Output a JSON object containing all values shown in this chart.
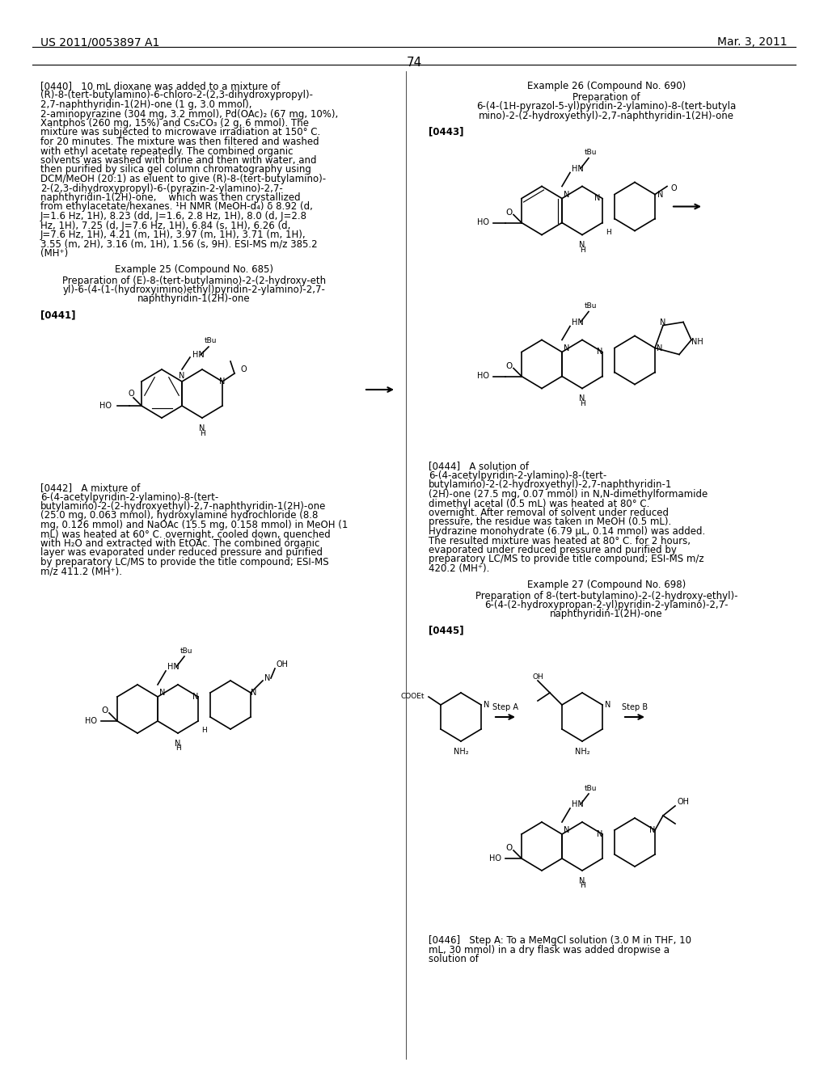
{
  "page_number": "74",
  "header_left": "US 2011/0053897 A1",
  "header_right": "Mar. 3, 2011",
  "background_color": "#ffffff",
  "text_color": "#000000",
  "font_size_body": 8.5,
  "font_size_header": 10,
  "font_size_page_num": 11,
  "left_column": {
    "para_0440": "[0440]   10 mL dioxane was added to a mixture of (R)-8-(tert-butylamino)-6-chloro-2-(2,3-dihydroxypropyl)-2,7-naphthyridin-1(2H)-one (1 g, 3.0 mmol), 2-aminopyrazine (304 mg, 3.2 mmol), Pd(OAc)₂ (67 mg, 10%), Xantphos (260 mg, 15%) and Cs₂CO₃ (2 g, 6 mmol). The mixture was subjected to microwave irradiation at 150° C. for 20 minutes. The mixture was then filtered and washed with ethyl acetate repeatedly. The combined organic solvents was washed with brine and then with water, and then purified by silica gel column chromatography using DCM/MeOH (20:1) as eluent to give (R)-8-(tert-butylamino)-2-(2,3-dihydroxypropyl)-6-(pyrazin-2-ylamino)-2,7-naphthyridin-1(2H)-one,    which was then crystallized from ethylacetate/hexanes. ¹H NMR (MeOH-d₄) δ 8.92 (d, J=1.6 Hz, 1H), 8.23 (dd, J=1.6, 2.8 Hz, 1H), 8.0 (d, J=2.8 Hz, 1H), 7.25 (d, J=7.6 Hz, 1H), 6.84 (s, 1H), 6.26 (d, J=7.6 Hz, 1H), 4.21 (m, 1H), 3.97 (m, 1H), 3.71 (m, 1H), 3.55 (m, 2H), 3.16 (m, 1H), 1.56 (s, 9H). ESI-MS m/z 385.2 (MH⁺)",
    "example25_title": "Example 25 (Compound No. 685)",
    "example25_prep": "Preparation of (E)-8-(tert-butylamino)-2-(2-hydroxy-ethyl)-6-(4-(1-(hydroxyimino)ethyl)pyridin-2-ylamino)-2,7-naphthyridin-1(2H)-one",
    "para_0441": "[0441]",
    "para_0442": "[0442]   A mixture of 6-(4-acetylpyridin-2-ylamino)-8-(tert-butylamino)-2-(2-hydroxyethyl)-2,7-naphthyridin-1(2H)-one (25.0 mg, 0.063 mmol), hydroxylamine hydrochloride (8.8 mg, 0.126 mmol) and NaOAc (15.5 mg, 0.158 mmol) in MeOH (1 mL) was heated at 60° C. overnight, cooled down, quenched with H₂O and extracted with EtOAc. The combined organic layer was evaporated under reduced pressure and purified by preparatory LC/MS to provide the title compound; ESI-MS m/z 411.2 (MH⁺)."
  },
  "right_column": {
    "example26_title": "Example 26 (Compound No. 690)",
    "example26_prep": "Preparation of 6-(4-(1H-pyrazol-5-yl)pyridin-2-ylamino)-8-(tert-butylamino)-2-(2-hydroxyethyl)-2,7-naphthyridin-1(2H)-one",
    "para_0443": "[0443]",
    "para_0444": "[0444]   A solution of 6-(4-acetylpyridin-2-ylamino)-8-(tert-butylamino)-2-(2-hydroxyethyl)-2,7-naphthyridin-1 (2H)-one (27.5 mg, 0.07 mmol) in N,N-dimethylformamide dimethyl acetal (0.5 mL) was heated at 80° C. overnight. After removal of solvent under reduced pressure, the residue was taken in MeOH (0.5 mL). Hydrazine monohydrate (6.79 μL, 0.14 mmol) was added. The resulted mixture was heated at 80° C. for 2 hours, evaporated under reduced pressure and purified by preparatory LC/MS to provide title compound; ESI-MS m/z 420.2 (MH⁺).",
    "example27_title": "Example 27 (Compound No. 698)",
    "example27_prep": "Preparation of 8-(tert-butylamino)-2-(2-hydroxy-ethyl)-6-(4-(2-hydroxypropan-2-yl)pyridin-2-ylamino)-2,7-naphthyridin-1(2H)-one",
    "para_0445": "[0445]",
    "para_0446": "[0446]   Step A: To a MeMgCl solution (3.0 M in THF, 10 mL, 30 mmol) in a dry flask was added dropwise a solution of"
  }
}
